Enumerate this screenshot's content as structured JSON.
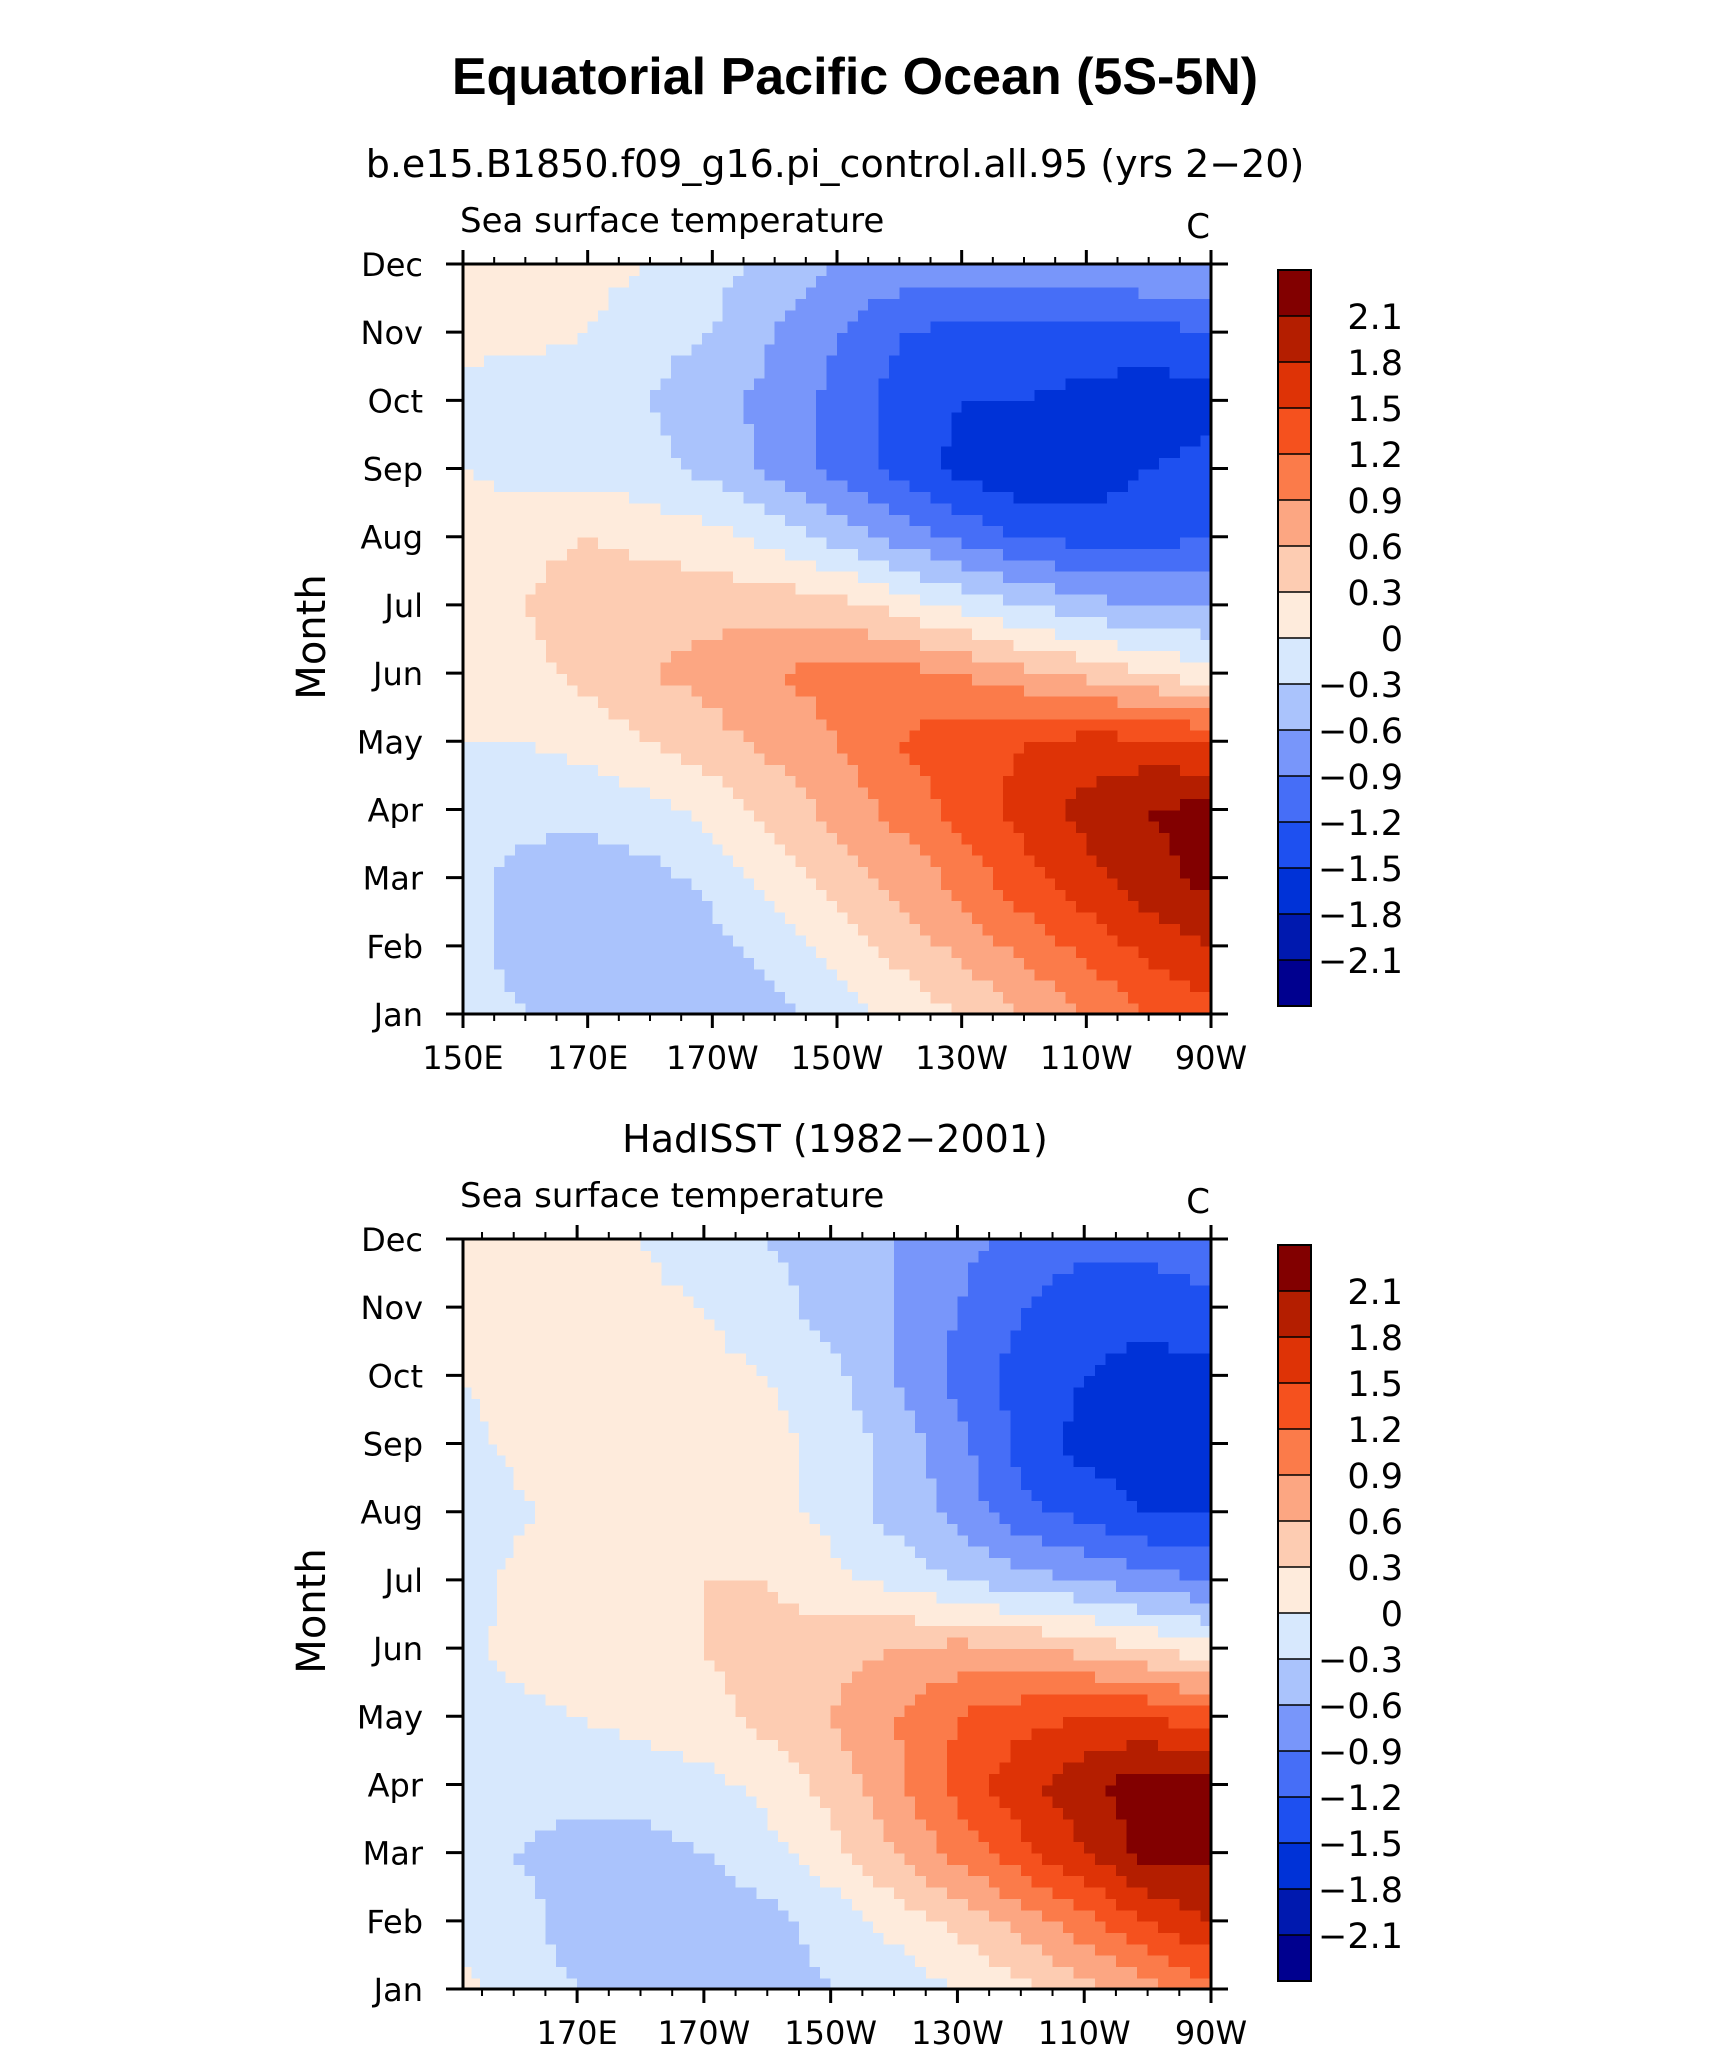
{
  "figure": {
    "title": "Equatorial Pacific Ocean (5S-5N)"
  },
  "colormap": {
    "levels": [
      -2.1,
      -1.8,
      -1.5,
      -1.2,
      -0.9,
      -0.6,
      -0.3,
      0,
      0.3,
      0.6,
      0.9,
      1.2,
      1.5,
      1.8,
      2.1
    ],
    "level_labels": [
      "−2.1",
      "−1.8",
      "−1.5",
      "−1.2",
      "−0.9",
      "−0.6",
      "−0.3",
      "0",
      "0.3",
      "0.6",
      "0.9",
      "1.2",
      "1.5",
      "1.8",
      "2.1"
    ],
    "colors": [
      "#00008f",
      "#0019af",
      "#0032d7",
      "#1e50f0",
      "#466ef7",
      "#7896fa",
      "#aac3fc",
      "#d7e8fd",
      "#feebdc",
      "#fdccb2",
      "#fca682",
      "#fb7b4a",
      "#f5511e",
      "#de3306",
      "#b41e00",
      "#820000"
    ]
  },
  "chart_data": [
    {
      "type": "heatmap",
      "title": "b.e15.B1850.f09_g16.pi_control.all.95 (yrs 2−20)",
      "left_string": "Sea surface temperature",
      "right_string": "C",
      "ylabel": "Month",
      "xlabel": "",
      "x_tick_labels": [
        "150E",
        "170E",
        "170W",
        "150W",
        "130W",
        "110W",
        "90W"
      ],
      "x_ticks": [
        150,
        170,
        190,
        210,
        230,
        250,
        270
      ],
      "xlim": [
        150,
        270
      ],
      "y_tick_labels": [
        "Jan",
        "Feb",
        "Mar",
        "Apr",
        "May",
        "Jun",
        "Jul",
        "Aug",
        "Sep",
        "Oct",
        "Nov",
        "Dec"
      ],
      "ylim": [
        1,
        12
      ],
      "colorbar": true,
      "x": [
        150,
        160,
        170,
        180,
        190,
        200,
        210,
        220,
        230,
        240,
        250,
        260,
        270
      ],
      "y": [
        "Jan",
        "Feb",
        "Mar",
        "Apr",
        "May",
        "Jun",
        "Jul",
        "Aug",
        "Sep",
        "Oct",
        "Nov",
        "Dec"
      ],
      "z": [
        [
          -0.2,
          -0.3,
          -0.4,
          -0.5,
          -0.5,
          -0.4,
          -0.2,
          0.1,
          0.3,
          0.6,
          0.9,
          1.2,
          1.4
        ],
        [
          -0.2,
          -0.4,
          -0.5,
          -0.6,
          -0.4,
          -0.2,
          0.1,
          0.4,
          0.7,
          1.0,
          1.3,
          1.6,
          1.8
        ],
        [
          -0.2,
          -0.4,
          -0.5,
          -0.4,
          -0.2,
          0.1,
          0.4,
          0.7,
          1.0,
          1.4,
          1.7,
          2.0,
          2.2
        ],
        [
          -0.1,
          -0.2,
          -0.2,
          -0.1,
          0.1,
          0.4,
          0.7,
          1.0,
          1.3,
          1.6,
          1.9,
          2.1,
          2.2
        ],
        [
          0.0,
          0.0,
          0.1,
          0.3,
          0.5,
          0.7,
          0.9,
          1.2,
          1.4,
          1.5,
          1.6,
          1.6,
          1.5
        ],
        [
          0.1,
          0.2,
          0.4,
          0.6,
          0.7,
          0.9,
          1.0,
          1.0,
          0.9,
          0.7,
          0.5,
          0.3,
          0.1
        ],
        [
          0.1,
          0.3,
          0.5,
          0.5,
          0.5,
          0.5,
          0.4,
          0.2,
          -0.1,
          -0.3,
          -0.5,
          -0.6,
          -0.6
        ],
        [
          0.1,
          0.2,
          0.3,
          0.2,
          0.1,
          -0.1,
          -0.4,
          -0.7,
          -1.0,
          -1.2,
          -1.3,
          -1.3,
          -1.2
        ],
        [
          0.0,
          -0.1,
          -0.1,
          -0.2,
          -0.4,
          -0.7,
          -1.0,
          -1.3,
          -1.6,
          -1.8,
          -1.7,
          -1.5,
          -1.4
        ],
        [
          -0.1,
          -0.2,
          -0.2,
          -0.3,
          -0.5,
          -0.7,
          -1.0,
          -1.3,
          -1.5,
          -1.5,
          -1.6,
          -1.7,
          -1.6
        ],
        [
          0.1,
          0.1,
          0.0,
          -0.2,
          -0.3,
          -0.6,
          -0.9,
          -1.2,
          -1.3,
          -1.3,
          -1.3,
          -1.3,
          -1.2
        ],
        [
          0.2,
          0.2,
          0.1,
          0.0,
          -0.2,
          -0.4,
          -0.6,
          -0.7,
          -0.7,
          -0.7,
          -0.7,
          -0.6,
          -0.6
        ]
      ]
    },
    {
      "type": "heatmap",
      "title": "HadISST (1982−2001)",
      "left_string": "Sea surface temperature",
      "right_string": "C",
      "ylabel": "Month",
      "xlabel": "",
      "x_tick_labels": [
        "170E",
        "170W",
        "150W",
        "130W",
        "110W",
        "90W"
      ],
      "x_ticks": [
        170,
        190,
        210,
        230,
        250,
        270
      ],
      "xlim": [
        152,
        270
      ],
      "y_tick_labels": [
        "Jan",
        "Feb",
        "Mar",
        "Apr",
        "May",
        "Jun",
        "Jul",
        "Aug",
        "Sep",
        "Oct",
        "Nov",
        "Dec"
      ],
      "ylim": [
        1,
        12
      ],
      "colorbar": true,
      "x": [
        152,
        160,
        170,
        180,
        190,
        200,
        210,
        220,
        230,
        240,
        250,
        260,
        270
      ],
      "y": [
        "Jan",
        "Feb",
        "Mar",
        "Apr",
        "May",
        "Jun",
        "Jul",
        "Aug",
        "Sep",
        "Oct",
        "Nov",
        "Dec"
      ],
      "z": [
        [
          0.1,
          -0.2,
          -0.3,
          -0.4,
          -0.4,
          -0.4,
          -0.3,
          -0.2,
          0.0,
          0.2,
          0.5,
          0.8,
          1.1
        ],
        [
          -0.1,
          -0.2,
          -0.4,
          -0.5,
          -0.5,
          -0.4,
          -0.2,
          0.1,
          0.4,
          0.7,
          1.1,
          1.5,
          1.8
        ],
        [
          -0.2,
          -0.3,
          -0.4,
          -0.4,
          -0.3,
          -0.1,
          0.2,
          0.6,
          1.0,
          1.4,
          1.8,
          2.2,
          2.2
        ],
        [
          -0.1,
          -0.2,
          -0.2,
          -0.2,
          -0.1,
          0.1,
          0.4,
          0.8,
          1.3,
          1.7,
          2.0,
          2.3,
          2.2
        ],
        [
          -0.1,
          -0.1,
          0.0,
          0.1,
          0.2,
          0.4,
          0.6,
          0.9,
          1.2,
          1.4,
          1.5,
          1.5,
          1.3
        ],
        [
          -0.1,
          0.1,
          0.2,
          0.2,
          0.3,
          0.4,
          0.5,
          0.6,
          0.7,
          0.6,
          0.5,
          0.3,
          0.1
        ],
        [
          -0.2,
          0.1,
          0.2,
          0.2,
          0.3,
          0.3,
          0.1,
          -0.1,
          -0.3,
          -0.5,
          -0.6,
          -0.8,
          -0.9
        ],
        [
          -0.3,
          -0.1,
          0.2,
          0.2,
          0.2,
          0.1,
          -0.1,
          -0.4,
          -0.7,
          -1.1,
          -1.3,
          -1.5,
          -1.5
        ],
        [
          -0.1,
          0.1,
          0.2,
          0.3,
          0.2,
          0.1,
          -0.1,
          -0.4,
          -0.8,
          -1.3,
          -1.6,
          -1.7,
          -1.7
        ],
        [
          0.0,
          0.1,
          0.1,
          0.1,
          0.1,
          0.0,
          -0.2,
          -0.6,
          -1.0,
          -1.3,
          -1.5,
          -1.6,
          -1.6
        ],
        [
          0.1,
          0.1,
          0.1,
          0.1,
          0.0,
          -0.2,
          -0.4,
          -0.6,
          -0.9,
          -1.2,
          -1.4,
          -1.4,
          -1.3
        ],
        [
          0.1,
          0.1,
          0.0,
          0.0,
          -0.2,
          -0.3,
          -0.4,
          -0.6,
          -0.8,
          -1.0,
          -1.1,
          -1.1,
          -1.0
        ]
      ]
    }
  ]
}
